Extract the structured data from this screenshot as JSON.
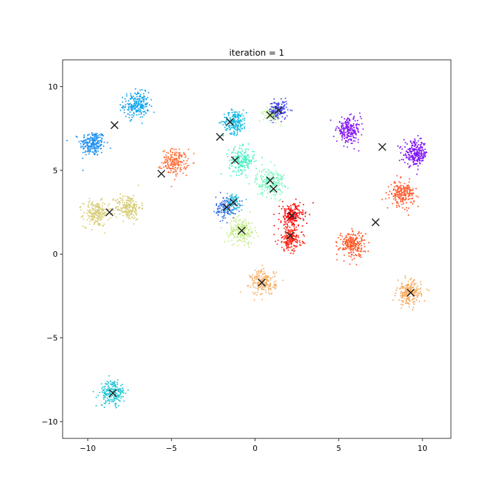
{
  "chart_data": {
    "type": "scatter",
    "title": "iteration = 1",
    "xlabel": "",
    "ylabel": "",
    "xlim": [
      -11.5,
      11.7
    ],
    "ylim": [
      -11.0,
      11.6
    ],
    "xticks": [
      -10,
      -5,
      0,
      5,
      10
    ],
    "yticks": [
      -10,
      -5,
      0,
      5,
      10
    ],
    "xtick_labels": [
      "−10",
      "−5",
      "0",
      "5",
      "10"
    ],
    "ytick_labels": [
      "−10",
      "−5",
      "0",
      "5",
      "10"
    ],
    "grid": false,
    "legend": "none",
    "clusters": [
      {
        "center": [
          -9.7,
          6.6
        ],
        "color": "#1e90f0",
        "n": 220,
        "spread": 0.38
      },
      {
        "center": [
          -7.1,
          8.9
        ],
        "color": "#12a4ec",
        "n": 220,
        "spread": 0.38
      },
      {
        "center": [
          -4.8,
          5.5
        ],
        "color": "#ff6f3a",
        "n": 200,
        "spread": 0.38
      },
      {
        "center": [
          -9.5,
          2.4
        ],
        "color": "#d8cd78",
        "n": 200,
        "spread": 0.38
      },
      {
        "center": [
          -7.6,
          2.8
        ],
        "color": "#d8cd78",
        "n": 200,
        "spread": 0.38
      },
      {
        "center": [
          -1.2,
          7.9
        ],
        "color": "#1bbbe2",
        "n": 200,
        "spread": 0.35
      },
      {
        "center": [
          -0.8,
          5.6
        ],
        "color": "#4cf0c4",
        "n": 200,
        "spread": 0.38
      },
      {
        "center": [
          1.0,
          8.4
        ],
        "color": "#b8f08e",
        "n": 90,
        "spread": 0.25
      },
      {
        "center": [
          1.4,
          8.6
        ],
        "color": "#4a4cf2",
        "n": 140,
        "spread": 0.28
      },
      {
        "center": [
          0.9,
          4.3
        ],
        "color": "#7af6c0",
        "n": 210,
        "spread": 0.42
      },
      {
        "center": [
          -1.7,
          2.8
        ],
        "color": "#3872e6",
        "n": 150,
        "spread": 0.32
      },
      {
        "center": [
          -1.3,
          3.1
        ],
        "color": "#3ac4dc",
        "n": 80,
        "spread": 0.28
      },
      {
        "center": [
          -0.8,
          1.4
        ],
        "color": "#c6ec8a",
        "n": 200,
        "spread": 0.38
      },
      {
        "center": [
          2.2,
          2.3
        ],
        "color": "#ff0a0a",
        "n": 200,
        "spread": 0.35
      },
      {
        "center": [
          2.1,
          0.9
        ],
        "color": "#ff2a18",
        "n": 200,
        "spread": 0.35
      },
      {
        "center": [
          5.6,
          7.4
        ],
        "color": "#8a1cf4",
        "n": 220,
        "spread": 0.36
      },
      {
        "center": [
          9.6,
          6.0
        ],
        "color": "#7d0cf6",
        "n": 220,
        "spread": 0.36
      },
      {
        "center": [
          8.8,
          3.6
        ],
        "color": "#ff5a2e",
        "n": 210,
        "spread": 0.36
      },
      {
        "center": [
          5.8,
          0.6
        ],
        "color": "#ff5522",
        "n": 220,
        "spread": 0.38
      },
      {
        "center": [
          0.5,
          -1.7
        ],
        "color": "#f8b068",
        "n": 200,
        "spread": 0.38
      },
      {
        "center": [
          9.2,
          -2.3
        ],
        "color": "#f7a85a",
        "n": 200,
        "spread": 0.36
      },
      {
        "center": [
          -8.5,
          -8.3
        ],
        "color": "#20c6d6",
        "n": 200,
        "spread": 0.38
      }
    ],
    "centroids": [
      [
        -8.4,
        7.7
      ],
      [
        -5.6,
        4.8
      ],
      [
        -8.7,
        2.5
      ],
      [
        -1.5,
        7.9
      ],
      [
        -2.1,
        7.0
      ],
      [
        -1.2,
        5.6
      ],
      [
        0.9,
        8.3
      ],
      [
        1.4,
        8.6
      ],
      [
        0.9,
        4.4
      ],
      [
        1.1,
        3.9
      ],
      [
        -1.7,
        2.8
      ],
      [
        -1.3,
        3.1
      ],
      [
        -0.8,
        1.4
      ],
      [
        2.2,
        2.3
      ],
      [
        2.1,
        1.1
      ],
      [
        7.6,
        6.4
      ],
      [
        7.2,
        1.9
      ],
      [
        9.3,
        -2.3
      ],
      [
        0.4,
        -1.7
      ],
      [
        -8.5,
        -8.3
      ]
    ],
    "centroid_color": "#222222"
  }
}
